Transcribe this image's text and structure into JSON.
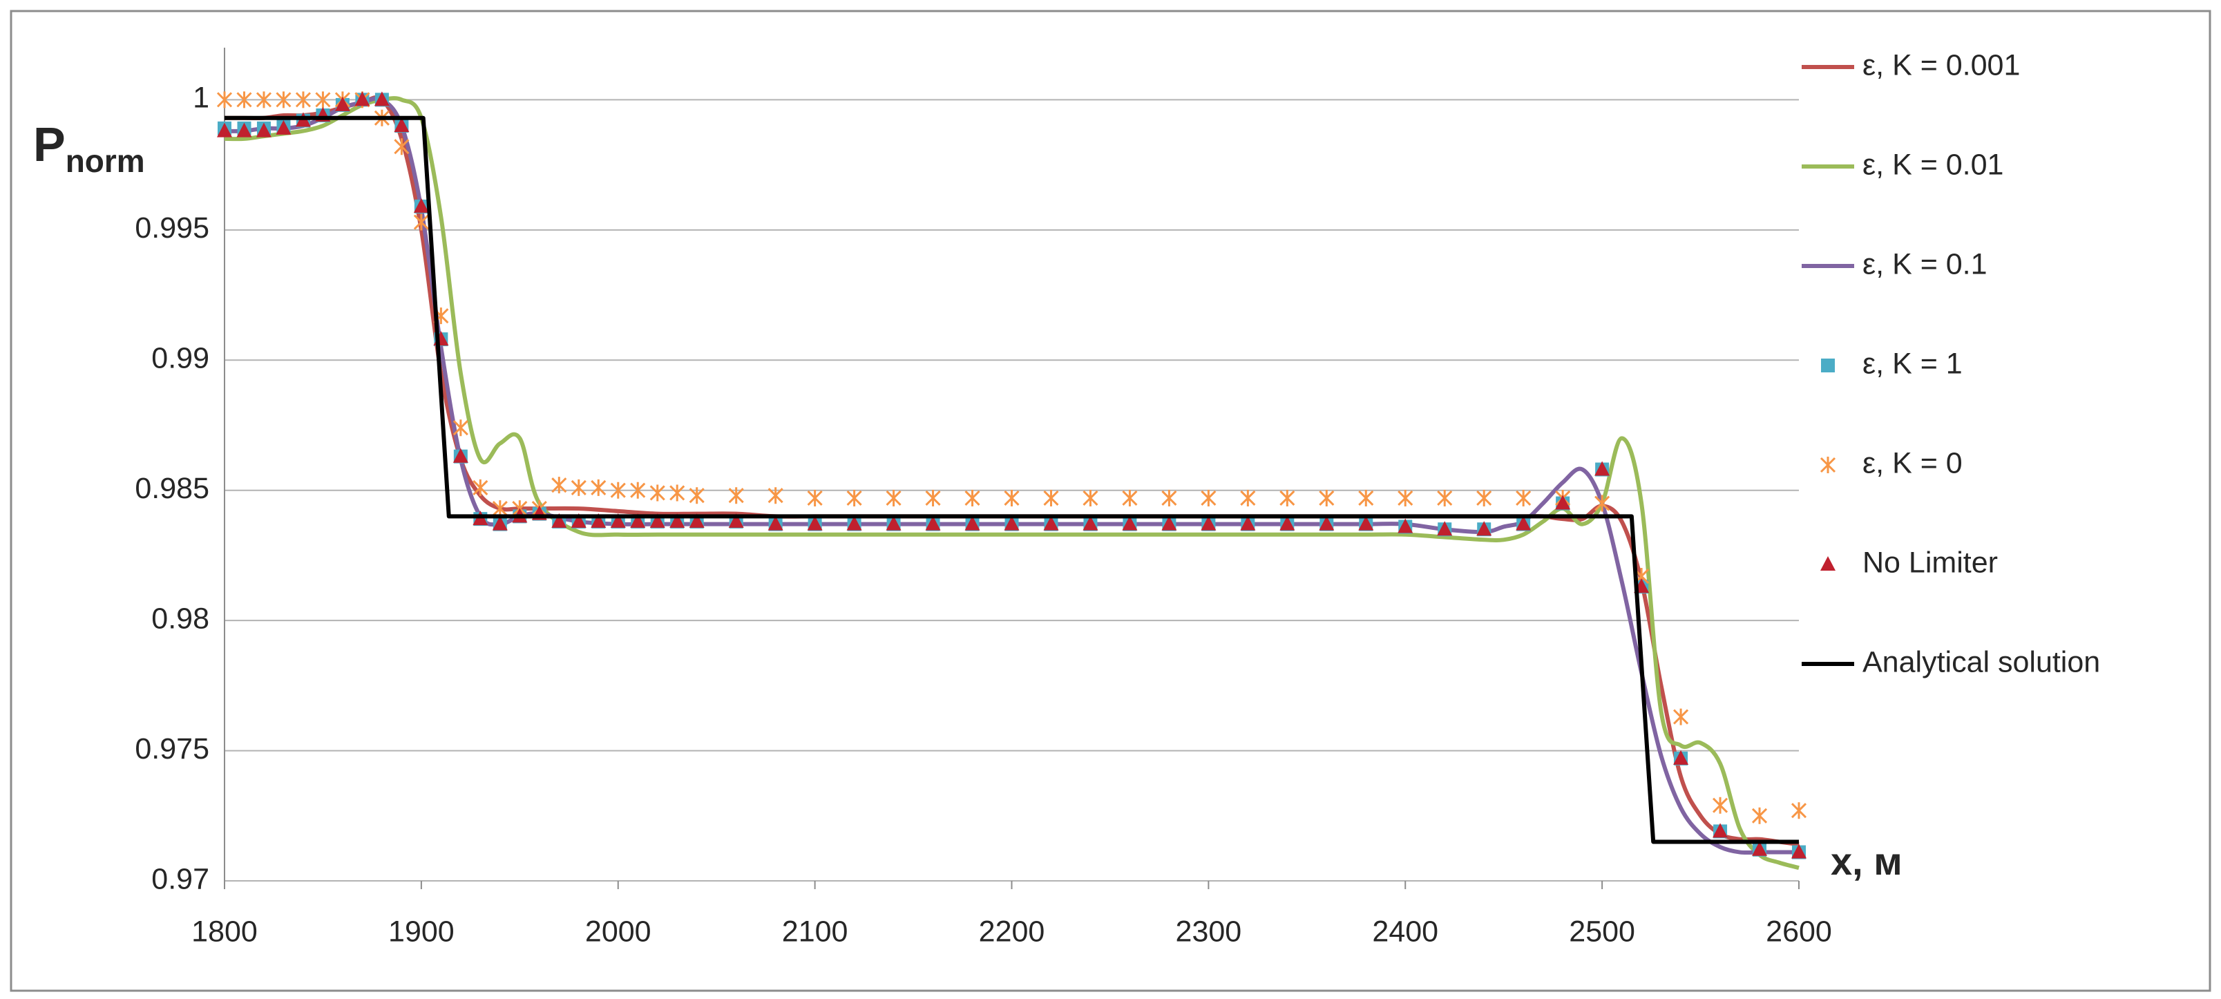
{
  "chart_data": {
    "type": "line",
    "ylabel": "P",
    "ylabel_sub": "norm",
    "xlabel": "x, м",
    "xlim": [
      1800,
      2600
    ],
    "xticks": [
      1800,
      1900,
      2000,
      2100,
      2200,
      2300,
      2400,
      2500,
      2600
    ],
    "ylim": [
      0.97,
      1.002
    ],
    "yticks": [
      0.97,
      0.975,
      0.98,
      0.985,
      0.99,
      0.995,
      1
    ],
    "grid": true,
    "legend": "right",
    "x": [
      1800,
      1810,
      1820,
      1830,
      1840,
      1850,
      1860,
      1870,
      1880,
      1890,
      1900,
      1910,
      1920,
      1930,
      1940,
      1950,
      1960,
      1980,
      2000,
      2020,
      2040,
      2060,
      2080,
      2100,
      2120,
      2140,
      2160,
      2180,
      2200,
      2220,
      2240,
      2260,
      2280,
      2300,
      2320,
      2340,
      2360,
      2380,
      2400,
      2420,
      2440,
      2450,
      2460,
      2470,
      2480,
      2490,
      2500,
      2510,
      2520,
      2530,
      2540,
      2550,
      2560,
      2570,
      2580,
      2590,
      2600
    ],
    "series": [
      {
        "name": "ε, K = 0.001",
        "color": "#c0504d",
        "marker": "line",
        "smooth": true,
        "values": [
          0.9993,
          0.9993,
          0.9993,
          0.9994,
          0.9994,
          0.9995,
          0.9997,
          0.9999,
          1,
          0.9985,
          0.995,
          0.9895,
          0.9862,
          0.9848,
          0.9843,
          0.9843,
          0.9843,
          0.9843,
          0.9842,
          0.9841,
          0.9841,
          0.9841,
          0.984,
          0.984,
          0.984,
          0.984,
          0.984,
          0.984,
          0.984,
          0.984,
          0.984,
          0.984,
          0.984,
          0.984,
          0.984,
          0.984,
          0.984,
          0.984,
          0.984,
          0.984,
          0.984,
          0.984,
          0.984,
          0.984,
          0.9839,
          0.9839,
          0.9844,
          0.9838,
          0.9815,
          0.9775,
          0.974,
          0.9725,
          0.9718,
          0.9716,
          0.9716,
          0.9715,
          0.9714
        ]
      },
      {
        "name": "ε, K = 0.01",
        "color": "#9bbb59",
        "marker": "line",
        "smooth": true,
        "values": [
          0.9985,
          0.9985,
          0.9986,
          0.9987,
          0.9988,
          0.999,
          0.9994,
          0.9998,
          1,
          1,
          0.9993,
          0.9955,
          0.9895,
          0.9862,
          0.9868,
          0.987,
          0.9845,
          0.9834,
          0.9833,
          0.9833,
          0.9833,
          0.9833,
          0.9833,
          0.9833,
          0.9833,
          0.9833,
          0.9833,
          0.9833,
          0.9833,
          0.9833,
          0.9833,
          0.9833,
          0.9833,
          0.9833,
          0.9833,
          0.9833,
          0.9833,
          0.9833,
          0.9833,
          0.9832,
          0.9831,
          0.9831,
          0.9833,
          0.9838,
          0.9843,
          0.9837,
          0.9845,
          0.987,
          0.9845,
          0.9765,
          0.9752,
          0.9753,
          0.9745,
          0.972,
          0.971,
          0.9707,
          0.9705
        ]
      },
      {
        "name": "ε, K = 0.1",
        "color": "#8064a2",
        "marker": "line",
        "smooth": true,
        "values": [
          0.9988,
          0.9988,
          0.9989,
          0.9989,
          0.999,
          0.9993,
          0.9997,
          0.9999,
          1,
          0.999,
          0.9958,
          0.9905,
          0.9862,
          0.984,
          0.9837,
          0.984,
          0.9841,
          0.9838,
          0.9837,
          0.9837,
          0.9837,
          0.9837,
          0.9837,
          0.9837,
          0.9837,
          0.9837,
          0.9837,
          0.9837,
          0.9837,
          0.9837,
          0.9837,
          0.9837,
          0.9837,
          0.9837,
          0.9837,
          0.9837,
          0.9837,
          0.9837,
          0.9837,
          0.9835,
          0.9834,
          0.9836,
          0.9838,
          0.9845,
          0.9853,
          0.9858,
          0.9845,
          0.9815,
          0.978,
          0.9748,
          0.9728,
          0.9718,
          0.9713,
          0.9711,
          0.9711,
          0.9711,
          0.9711
        ]
      },
      {
        "name": "ε, K = 1",
        "color": "#4bacc6",
        "marker": "square",
        "x": [
          1800,
          1810,
          1820,
          1830,
          1840,
          1850,
          1860,
          1870,
          1880,
          1890,
          1900,
          1910,
          1920,
          1930,
          1940,
          1950,
          1960,
          1970,
          1980,
          1990,
          2000,
          2010,
          2020,
          2030,
          2040,
          2060,
          2080,
          2100,
          2120,
          2140,
          2160,
          2180,
          2200,
          2220,
          2240,
          2260,
          2280,
          2300,
          2320,
          2340,
          2360,
          2380,
          2400,
          2420,
          2440,
          2460,
          2480,
          2500,
          2520,
          2540,
          2560,
          2580,
          2600
        ],
        "values": [
          0.9989,
          0.9989,
          0.9989,
          0.999,
          0.9992,
          0.9994,
          0.9998,
          1,
          1,
          0.999,
          0.9959,
          0.9908,
          0.9863,
          0.9839,
          0.9837,
          0.984,
          0.9841,
          0.9838,
          0.9838,
          0.9838,
          0.9838,
          0.9838,
          0.9838,
          0.9838,
          0.9838,
          0.9838,
          0.9837,
          0.9837,
          0.9837,
          0.9837,
          0.9837,
          0.9837,
          0.9837,
          0.9837,
          0.9837,
          0.9837,
          0.9837,
          0.9837,
          0.9837,
          0.9837,
          0.9837,
          0.9837,
          0.9836,
          0.9835,
          0.9835,
          0.9837,
          0.9845,
          0.9858,
          0.9813,
          0.9747,
          0.9719,
          0.9712,
          0.9711
        ]
      },
      {
        "name": "ε, K = 0",
        "color": "#f79646",
        "marker": "asterisk",
        "x": [
          1800,
          1810,
          1820,
          1830,
          1840,
          1850,
          1860,
          1870,
          1880,
          1890,
          1900,
          1910,
          1920,
          1930,
          1940,
          1950,
          1960,
          1970,
          1980,
          1990,
          2000,
          2010,
          2020,
          2030,
          2040,
          2060,
          2080,
          2100,
          2120,
          2140,
          2160,
          2180,
          2200,
          2220,
          2240,
          2260,
          2280,
          2300,
          2320,
          2340,
          2360,
          2380,
          2400,
          2420,
          2440,
          2460,
          2480,
          2500,
          2520,
          2540,
          2560,
          2580,
          2600
        ],
        "values": [
          1,
          1,
          1,
          1,
          1,
          1,
          1,
          1,
          0.9993,
          0.9982,
          0.9953,
          0.9917,
          0.9874,
          0.9851,
          0.9843,
          0.9843,
          0.9843,
          0.9852,
          0.9851,
          0.9851,
          0.985,
          0.985,
          0.9849,
          0.9849,
          0.9848,
          0.9848,
          0.9848,
          0.9847,
          0.9847,
          0.9847,
          0.9847,
          0.9847,
          0.9847,
          0.9847,
          0.9847,
          0.9847,
          0.9847,
          0.9847,
          0.9847,
          0.9847,
          0.9847,
          0.9847,
          0.9847,
          0.9847,
          0.9847,
          0.9847,
          0.9847,
          0.9845,
          0.9817,
          0.9763,
          0.9729,
          0.9725,
          0.9727
        ]
      },
      {
        "name": "No Limiter",
        "color": "#c0202e",
        "marker": "triangle",
        "x": [
          1800,
          1810,
          1820,
          1830,
          1840,
          1850,
          1860,
          1870,
          1880,
          1890,
          1900,
          1910,
          1920,
          1930,
          1940,
          1950,
          1960,
          1970,
          1980,
          1990,
          2000,
          2010,
          2020,
          2030,
          2040,
          2060,
          2080,
          2100,
          2120,
          2140,
          2160,
          2180,
          2200,
          2220,
          2240,
          2260,
          2280,
          2300,
          2320,
          2340,
          2360,
          2380,
          2400,
          2420,
          2440,
          2460,
          2480,
          2500,
          2520,
          2540,
          2560,
          2580,
          2600
        ],
        "values": [
          0.9988,
          0.9988,
          0.9988,
          0.9989,
          0.9992,
          0.9994,
          0.9998,
          1,
          1,
          0.999,
          0.9959,
          0.9908,
          0.9863,
          0.9839,
          0.9837,
          0.984,
          0.9841,
          0.9838,
          0.9838,
          0.9838,
          0.9838,
          0.9838,
          0.9838,
          0.9838,
          0.9838,
          0.9838,
          0.9837,
          0.9837,
          0.9837,
          0.9837,
          0.9837,
          0.9837,
          0.9837,
          0.9837,
          0.9837,
          0.9837,
          0.9837,
          0.9837,
          0.9837,
          0.9837,
          0.9837,
          0.9837,
          0.9836,
          0.9835,
          0.9835,
          0.9837,
          0.9845,
          0.9858,
          0.9813,
          0.9747,
          0.9719,
          0.9712,
          0.9711
        ]
      },
      {
        "name": "Analytical solution",
        "color": "#000000",
        "marker": "line",
        "smooth": false,
        "x": [
          1800,
          1901,
          1914,
          2515,
          2526,
          2600
        ],
        "values": [
          0.9993,
          0.9993,
          0.984,
          0.984,
          0.9715,
          0.9715
        ]
      }
    ]
  }
}
